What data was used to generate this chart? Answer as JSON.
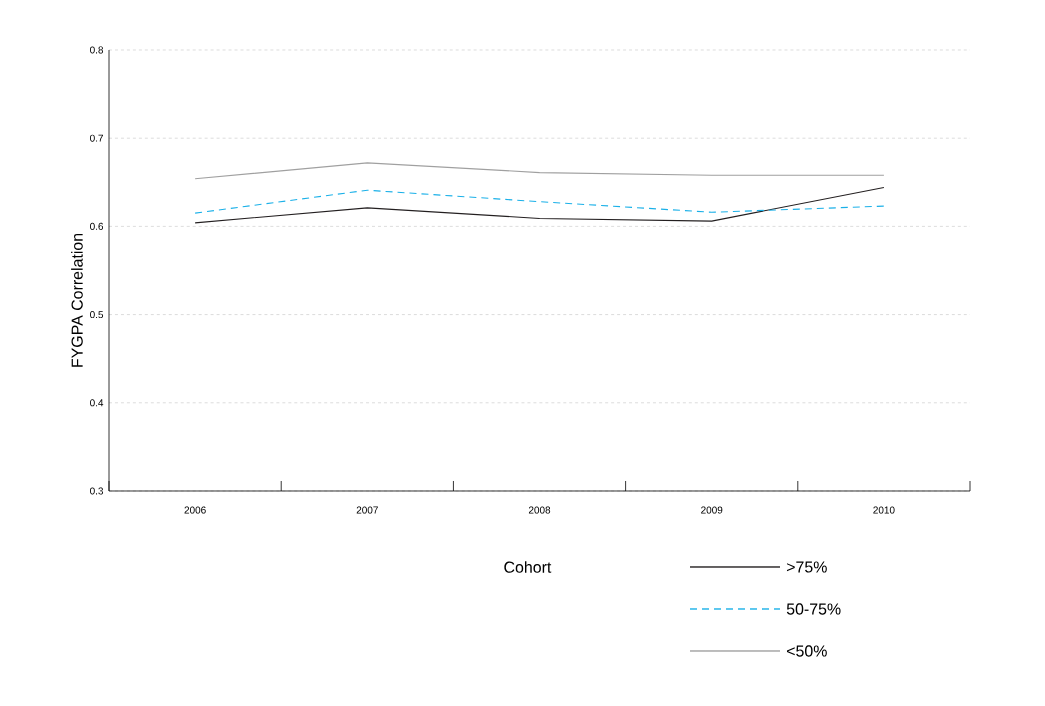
{
  "chart_data": {
    "type": "line",
    "xlabel": null,
    "ylabel": "FYGPA Correlation",
    "legend_title": "Cohort",
    "categories": [
      "2006",
      "2007",
      "2008",
      "2009",
      "2010"
    ],
    "series": [
      {
        "name": ">75%",
        "color": "#231f20",
        "line_style": "solid",
        "values": [
          0.604,
          0.621,
          0.609,
          0.606,
          0.644
        ]
      },
      {
        "name": "50-75%",
        "color": "#1ab0e8",
        "line_style": "dashed",
        "values": [
          0.615,
          0.641,
          0.628,
          0.616,
          0.623
        ]
      },
      {
        "name": "<50%",
        "color": "#a0a0a0",
        "line_style": "solid",
        "values": [
          0.654,
          0.672,
          0.661,
          0.658,
          0.658
        ]
      }
    ],
    "ylim": [
      0.3,
      0.8
    ],
    "yticks": [
      0.3,
      0.4,
      0.5,
      0.6,
      0.7,
      0.8
    ],
    "grid": "y",
    "legend": "bottom",
    "marker": "none"
  }
}
